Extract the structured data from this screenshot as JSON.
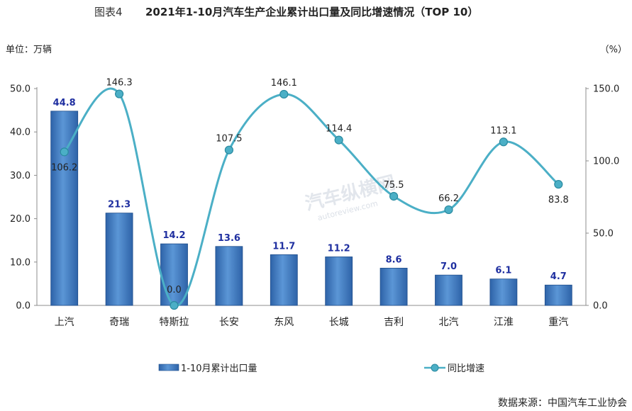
{
  "figure_label": "图表4",
  "title": "2021年1-10月汽车生产企业累计出口量及同比增速情况（TOP 10）",
  "left_unit": "单位：万辆",
  "right_unit": "（%）",
  "source": "数据来源：中国汽车工业协会",
  "watermark": {
    "text": "汽车纵横网",
    "url": "autoreview.com"
  },
  "colors": {
    "bar_top": "#5B96D6",
    "bar_bottom": "#2E63A8",
    "bar_edge": "#1F4E8C",
    "line": "#4BAFC6",
    "marker": "#4BAFC6",
    "bar_label": "#1F2FA0"
  },
  "chart_data": {
    "type": "bar+line",
    "categories": [
      "上汽",
      "奇瑞",
      "特斯拉",
      "长安",
      "东风",
      "长城",
      "吉利",
      "北汽",
      "江淮",
      "重汽"
    ],
    "series": [
      {
        "name": "1-10月累计出口量",
        "type": "bar",
        "axis": "left",
        "values": [
          44.8,
          21.3,
          14.2,
          13.6,
          11.7,
          11.2,
          8.6,
          7.0,
          6.1,
          4.7
        ],
        "labels": [
          "44.8",
          "21.3",
          "14.2",
          "13.6",
          "11.7",
          "11.2",
          "8.6",
          "7.0",
          "6.1",
          "4.7"
        ]
      },
      {
        "name": "同比增速",
        "type": "line",
        "axis": "right",
        "values": [
          106.2,
          146.3,
          0.0,
          107.5,
          146.1,
          114.4,
          75.5,
          66.2,
          113.1,
          83.8
        ],
        "labels": [
          "106.2",
          "146.3",
          "0.0",
          "107.5",
          "146.1",
          "114.4",
          "75.5",
          "66.2",
          "113.1",
          "83.8"
        ]
      }
    ],
    "y_left": {
      "range": [
        0,
        50
      ],
      "ticks": [
        "0.0",
        "10.0",
        "20.0",
        "30.0",
        "40.0",
        "50.0"
      ]
    },
    "y_right": {
      "range": [
        0,
        150
      ],
      "ticks": [
        "0.0",
        "50.0",
        "100.0",
        "150.0"
      ]
    },
    "legend_position": "bottom",
    "grid": false
  }
}
